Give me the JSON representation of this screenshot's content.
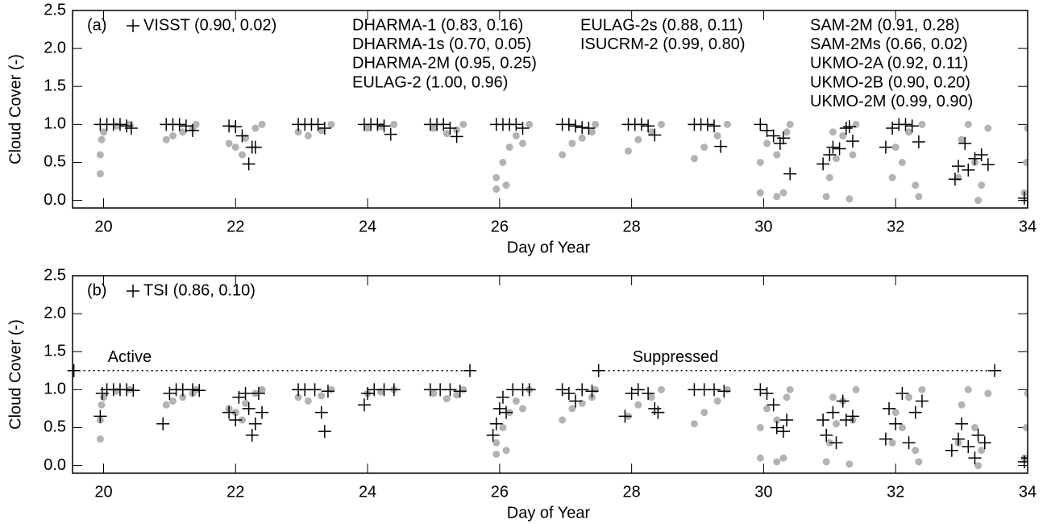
{
  "chart_data": [
    {
      "type": "scatter",
      "panel_label": "(a)",
      "x_label": "Day of Year",
      "y_label": "Cloud Cover (-)",
      "xlim": [
        19.53,
        34
      ],
      "ylim": [
        -0.1,
        2.5
      ],
      "xticks": [
        20,
        22,
        24,
        26,
        28,
        30,
        32,
        34
      ],
      "yticks": [
        {
          "value": 0,
          "label": "0.0"
        },
        0.5,
        {
          "value": 1,
          "label": "1.0"
        },
        1.5,
        {
          "value": 2,
          "label": "2.0"
        },
        2.5
      ],
      "annotation_columns": [
        [
          "DHARMA-1 (0.83, 0.16)",
          "DHARMA-1s (0.70, 0.05)",
          "DHARMA-2M (0.95, 0.25)",
          "EULAG-2 (1.00, 0.96)"
        ],
        [
          "EULAG-2s (0.88, 0.11)",
          "ISUCRM-2 (0.99, 0.80)"
        ],
        [
          "SAM-2M (0.91, 0.28)",
          "SAM-2Ms (0.66, 0.02)",
          "UKMO-2A (0.92, 0.11)",
          "UKMO-2B (0.90, 0.20)",
          "UKMO-2M (0.99, 0.90)"
        ]
      ],
      "series": [
        {
          "color": "#b3b3b3",
          "marker": "circle",
          "x": [
            19.95,
            19.95,
            19.97,
            20.0,
            20.2,
            20.4,
            20.95,
            21.05,
            21.2,
            21.35,
            21.4,
            21.9,
            22.0,
            22.15,
            22.3,
            22.4,
            22.1,
            22.95,
            23.1,
            23.3,
            23.45,
            24.0,
            24.2,
            24.4,
            25.0,
            25.2,
            25.35,
            25.45,
            25.95,
            25.95,
            26.05,
            26.15,
            26.25,
            26.35,
            26.45,
            26.1,
            26.95,
            27.1,
            27.25,
            27.4,
            27.45,
            27.95,
            28.1,
            28.3,
            28.45,
            28.95,
            29.1,
            29.3,
            29.45,
            29.95,
            29.95,
            30.05,
            30.2,
            30.3,
            30.2,
            30.35,
            30.4,
            30.95,
            31.0,
            31.1,
            31.2,
            31.3,
            31.35,
            31.4,
            31.05,
            31.95,
            32.0,
            32.1,
            32.2,
            32.3,
            32.4,
            32.35,
            32.95,
            33.0,
            33.1,
            33.2,
            33.3,
            33.4,
            33.25,
            33.95,
            33.98,
            34.0
          ],
          "values": [
            0.35,
            0.6,
            0.8,
            0.9,
            0.98,
            1.0,
            0.8,
            0.85,
            0.9,
            0.95,
            1.0,
            0.75,
            0.7,
            0.82,
            0.95,
            1.0,
            0.6,
            0.9,
            0.85,
            0.92,
            1.0,
            0.95,
            0.97,
            1.0,
            0.95,
            0.88,
            0.93,
            1.0,
            0.15,
            0.3,
            0.5,
            0.7,
            0.85,
            0.75,
            1.0,
            0.2,
            0.6,
            0.75,
            0.82,
            0.9,
            1.0,
            0.65,
            0.8,
            0.9,
            1.0,
            0.55,
            0.7,
            0.85,
            1.0,
            0.1,
            0.5,
            0.75,
            0.05,
            0.1,
            0.6,
            0.9,
            1.0,
            0.05,
            0.3,
            0.55,
            0.85,
            0.02,
            0.6,
            1.0,
            0.9,
            0.3,
            0.7,
            0.5,
            0.9,
            0.2,
            1.0,
            0.05,
            0.3,
            0.8,
            1.0,
            0.5,
            0.2,
            0.95,
            0.0,
            0.1,
            0.5,
            0.95
          ]
        },
        {
          "name": "VISST (0.90, 0.02)",
          "color": "#000000",
          "marker": "plus",
          "x": [
            19.95,
            20.05,
            20.15,
            20.25,
            20.35,
            20.42,
            20.95,
            21.05,
            21.15,
            21.25,
            21.35,
            21.9,
            22.0,
            22.1,
            22.2,
            22.25,
            22.3,
            22.95,
            23.05,
            23.15,
            23.25,
            23.35,
            23.95,
            24.05,
            24.15,
            24.25,
            24.35,
            24.95,
            25.05,
            25.15,
            25.25,
            25.35,
            25.95,
            26.05,
            26.15,
            26.25,
            26.35,
            26.95,
            27.05,
            27.15,
            27.25,
            27.35,
            27.95,
            28.05,
            28.15,
            28.25,
            28.35,
            28.95,
            29.05,
            29.15,
            29.25,
            29.35,
            29.95,
            30.05,
            30.15,
            30.25,
            30.3,
            30.4,
            30.9,
            31.0,
            31.05,
            31.15,
            31.25,
            31.3,
            31.35,
            31.85,
            31.95,
            32.05,
            32.15,
            32.25,
            32.35,
            32.9,
            32.95,
            33.05,
            33.1,
            33.2,
            33.3,
            33.4,
            33.95,
            34.0
          ],
          "values": [
            1.0,
            1.0,
            1.0,
            1.0,
            0.98,
            0.95,
            1.0,
            1.0,
            1.0,
            0.98,
            0.92,
            0.98,
            0.97,
            0.85,
            0.48,
            0.7,
            0.7,
            1.0,
            1.0,
            1.0,
            1.0,
            0.95,
            1.0,
            1.0,
            1.0,
            0.98,
            0.87,
            1.0,
            1.0,
            1.0,
            0.95,
            0.84,
            1.0,
            1.0,
            1.0,
            1.0,
            0.95,
            1.0,
            1.0,
            0.98,
            0.96,
            0.95,
            1.0,
            1.0,
            1.0,
            0.98,
            0.86,
            1.0,
            1.0,
            1.0,
            0.98,
            0.71,
            1.0,
            0.92,
            0.85,
            0.75,
            0.82,
            0.35,
            0.48,
            0.6,
            0.7,
            0.68,
            0.95,
            0.97,
            0.78,
            0.7,
            0.95,
            1.0,
            1.0,
            0.98,
            0.77,
            0.28,
            0.45,
            0.75,
            0.4,
            0.55,
            0.6,
            0.47,
            0.03,
            0.0
          ]
        }
      ]
    },
    {
      "type": "scatter",
      "panel_label": "(b)",
      "x_label": "Day of Year",
      "y_label": "Cloud Cover (-)",
      "xlim": [
        19.53,
        34
      ],
      "ylim": [
        -0.1,
        2.5
      ],
      "xticks": [
        20,
        22,
        24,
        26,
        28,
        30,
        32,
        34
      ],
      "yticks": [
        {
          "value": 0,
          "label": "0.0"
        },
        0.5,
        {
          "value": 1,
          "label": "1.0"
        },
        1.5,
        {
          "value": 2,
          "label": "2.0"
        },
        2.5
      ],
      "regimes": [
        {
          "label": "Active",
          "x": [
            19.55,
            25.55
          ],
          "y": 1.25
        },
        {
          "label": "Suppressed",
          "x": [
            27.5,
            33.5
          ],
          "y": 1.25
        }
      ],
      "series": [
        {
          "color": "#b3b3b3",
          "marker": "circle",
          "x": [
            19.95,
            19.95,
            19.97,
            20.0,
            20.2,
            20.4,
            20.95,
            21.05,
            21.2,
            21.35,
            21.4,
            21.9,
            22.0,
            22.15,
            22.3,
            22.4,
            22.1,
            22.95,
            23.1,
            23.3,
            23.45,
            24.0,
            24.2,
            24.4,
            25.0,
            25.2,
            25.35,
            25.45,
            25.95,
            25.95,
            26.05,
            26.15,
            26.25,
            26.35,
            26.45,
            26.1,
            26.95,
            27.1,
            27.25,
            27.4,
            27.45,
            27.95,
            28.1,
            28.3,
            28.45,
            28.95,
            29.1,
            29.3,
            29.45,
            29.95,
            29.95,
            30.05,
            30.2,
            30.3,
            30.2,
            30.35,
            30.4,
            30.95,
            31.0,
            31.1,
            31.2,
            31.3,
            31.35,
            31.4,
            31.05,
            31.95,
            32.0,
            32.1,
            32.2,
            32.3,
            32.4,
            32.35,
            32.95,
            33.0,
            33.1,
            33.2,
            33.3,
            33.4,
            33.25,
            33.95,
            33.98,
            34.0
          ],
          "values": [
            0.35,
            0.6,
            0.8,
            0.9,
            0.98,
            1.0,
            0.8,
            0.85,
            0.9,
            0.95,
            1.0,
            0.75,
            0.7,
            0.82,
            0.95,
            1.0,
            0.6,
            0.9,
            0.85,
            0.92,
            1.0,
            0.95,
            0.97,
            1.0,
            0.95,
            0.88,
            0.93,
            1.0,
            0.15,
            0.3,
            0.5,
            0.7,
            0.85,
            0.75,
            1.0,
            0.2,
            0.6,
            0.75,
            0.82,
            0.9,
            1.0,
            0.65,
            0.8,
            0.9,
            1.0,
            0.55,
            0.7,
            0.85,
            1.0,
            0.1,
            0.5,
            0.75,
            0.05,
            0.1,
            0.6,
            0.9,
            1.0,
            0.05,
            0.3,
            0.55,
            0.85,
            0.02,
            0.6,
            1.0,
            0.9,
            0.3,
            0.7,
            0.5,
            0.9,
            0.2,
            1.0,
            0.05,
            0.3,
            0.8,
            1.0,
            0.5,
            0.2,
            0.95,
            0.0,
            0.1,
            0.5,
            0.95
          ]
        },
        {
          "name": "TSI (0.86, 0.10)",
          "color": "#000000",
          "marker": "plus",
          "x": [
            19.95,
            19.98,
            20.05,
            20.15,
            20.25,
            20.35,
            20.45,
            20.9,
            21.0,
            21.1,
            21.2,
            21.35,
            21.45,
            21.9,
            22.0,
            22.05,
            22.15,
            22.2,
            22.25,
            22.3,
            22.35,
            22.4,
            22.95,
            23.05,
            23.2,
            23.3,
            23.35,
            23.4,
            23.95,
            24.0,
            24.1,
            24.25,
            24.4,
            24.95,
            25.1,
            25.25,
            25.4,
            25.9,
            25.95,
            26.0,
            26.05,
            26.1,
            26.2,
            26.35,
            26.45,
            26.95,
            27.05,
            27.15,
            27.25,
            27.4,
            27.9,
            28.0,
            28.1,
            28.25,
            28.35,
            28.4,
            28.95,
            29.1,
            29.25,
            29.4,
            29.95,
            30.05,
            30.15,
            30.2,
            30.3,
            30.35,
            30.9,
            30.95,
            31.05,
            31.1,
            31.2,
            31.25,
            31.35,
            31.85,
            31.9,
            32.0,
            32.1,
            32.2,
            32.3,
            32.4,
            32.85,
            32.95,
            33.0,
            33.1,
            33.2,
            33.25,
            33.35,
            33.95,
            34.0
          ],
          "values": [
            0.65,
            0.95,
            1.0,
            1.0,
            1.0,
            1.0,
            0.99,
            0.55,
            0.95,
            1.0,
            1.0,
            1.0,
            0.99,
            0.7,
            0.6,
            0.9,
            0.95,
            0.75,
            0.4,
            0.55,
            0.95,
            0.7,
            1.0,
            1.0,
            1.0,
            0.7,
            0.45,
            0.98,
            0.8,
            0.95,
            1.0,
            1.0,
            1.0,
            1.0,
            1.0,
            1.0,
            0.98,
            0.4,
            0.55,
            0.75,
            0.9,
            0.7,
            1.0,
            1.0,
            1.0,
            1.0,
            0.95,
            0.85,
            1.0,
            0.98,
            0.65,
            0.95,
            1.0,
            0.95,
            0.75,
            0.7,
            1.0,
            1.0,
            1.0,
            0.98,
            1.0,
            0.95,
            0.8,
            0.5,
            0.45,
            0.6,
            0.6,
            0.4,
            0.7,
            0.3,
            0.85,
            0.6,
            0.65,
            0.35,
            0.75,
            0.55,
            0.95,
            0.3,
            0.7,
            0.85,
            0.2,
            0.35,
            0.55,
            0.25,
            0.1,
            0.4,
            0.3,
            0.05,
            0.1
          ]
        }
      ]
    }
  ]
}
